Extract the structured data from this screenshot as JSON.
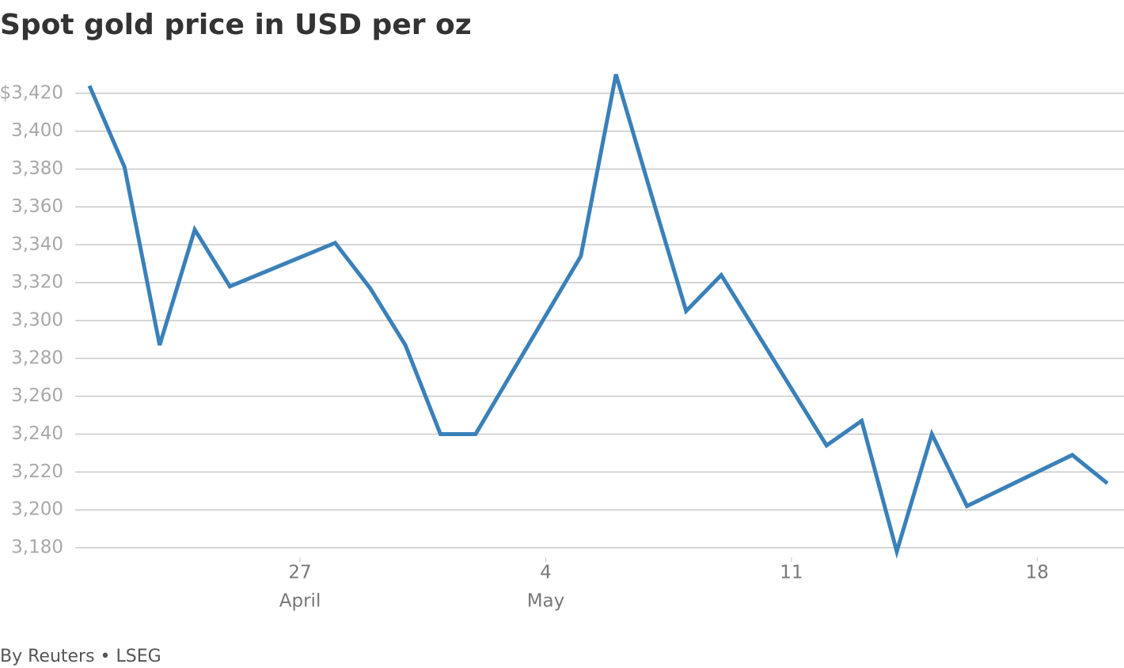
{
  "chart_data": {
    "type": "line",
    "title": "Spot gold price in USD per oz",
    "source": "By Reuters • LSEG",
    "x": [
      "04-21",
      "04-22",
      "04-23",
      "04-24",
      "04-25",
      "04-28",
      "04-29",
      "04-30",
      "05-01",
      "05-02",
      "05-05",
      "05-06",
      "05-07",
      "05-08",
      "05-09",
      "05-12",
      "05-13",
      "05-14",
      "05-15",
      "05-16",
      "05-19",
      "05-20"
    ],
    "series": [
      {
        "name": "Spot gold",
        "color": "#3a80ba",
        "values": [
          3424,
          3381,
          3287,
          3348,
          3318,
          3341,
          3317,
          3287,
          3240,
          3240,
          3334,
          3430,
          3367,
          3305,
          3324,
          3234,
          3247,
          3178,
          3240,
          3202,
          3229,
          3214
        ]
      }
    ],
    "xlim": [
      "04-21",
      "05-20"
    ],
    "xticks": [
      {
        "value": "04-27",
        "label": "27"
      },
      {
        "value": "05-04",
        "label": "4"
      },
      {
        "value": "05-11",
        "label": "11"
      },
      {
        "value": "05-18",
        "label": "18"
      }
    ],
    "x_month_labels": [
      {
        "value": "04-27",
        "label": "April"
      },
      {
        "value": "05-04",
        "label": "May"
      }
    ],
    "ylim": [
      3175,
      3435
    ],
    "yticks": [
      {
        "value": 3180,
        "label": "3,180"
      },
      {
        "value": 3200,
        "label": "3,200"
      },
      {
        "value": 3220,
        "label": "3,220"
      },
      {
        "value": 3240,
        "label": "3,240"
      },
      {
        "value": 3260,
        "label": "3,260"
      },
      {
        "value": 3280,
        "label": "3,280"
      },
      {
        "value": 3300,
        "label": "3,300"
      },
      {
        "value": 3320,
        "label": "3,320"
      },
      {
        "value": 3340,
        "label": "3,340"
      },
      {
        "value": 3360,
        "label": "3,360"
      },
      {
        "value": 3380,
        "label": "3,380"
      },
      {
        "value": 3400,
        "label": "3,400"
      },
      {
        "value": 3420,
        "label": "$3,420"
      }
    ],
    "grid": true
  }
}
